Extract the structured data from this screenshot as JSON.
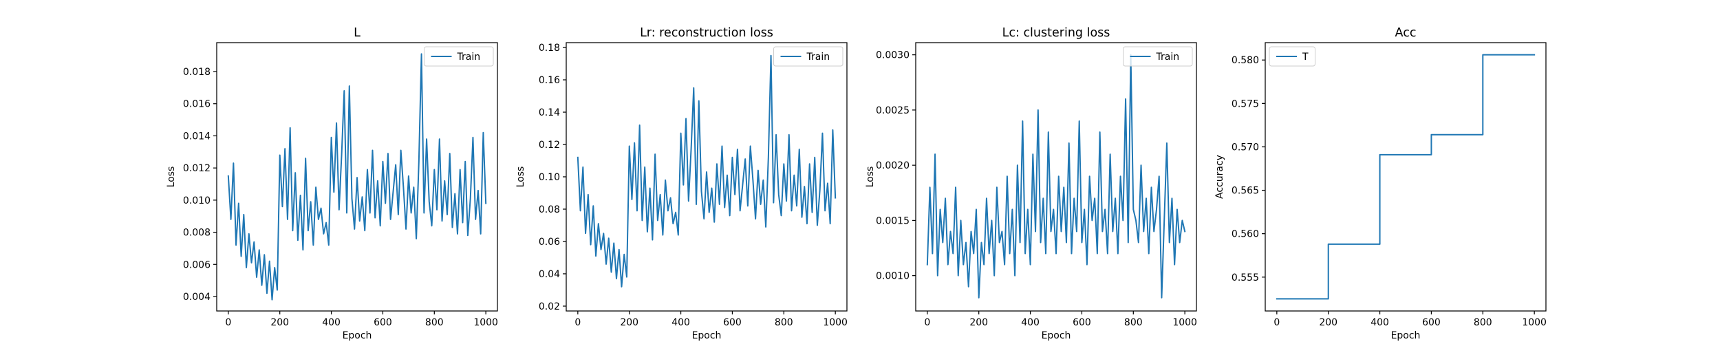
{
  "figure": {
    "line_color": "#1f77b4",
    "background": "#ffffff"
  },
  "chart_data": [
    {
      "type": "line",
      "title": "L",
      "xlabel": "Epoch",
      "ylabel": "Loss",
      "xlim": [
        -45,
        1045
      ],
      "ylim": [
        0.0031,
        0.0198
      ],
      "xticks": [
        0,
        200,
        400,
        600,
        800,
        1000
      ],
      "yticks": [
        0.004,
        0.006,
        0.008,
        0.01,
        0.012,
        0.014,
        0.016,
        0.018
      ],
      "ytick_labels": [
        "0.004",
        "0.006",
        "0.008",
        "0.010",
        "0.012",
        "0.014",
        "0.016",
        "0.018"
      ],
      "legend": {
        "loc": "upper right",
        "entries": [
          "Train"
        ]
      },
      "series": [
        {
          "name": "Train",
          "step": false,
          "x": [
            0,
            10,
            20,
            30,
            40,
            50,
            60,
            70,
            80,
            90,
            100,
            110,
            120,
            130,
            140,
            150,
            160,
            170,
            180,
            190,
            200,
            210,
            220,
            230,
            240,
            250,
            260,
            270,
            280,
            290,
            300,
            310,
            320,
            330,
            340,
            350,
            360,
            370,
            380,
            390,
            400,
            410,
            420,
            430,
            440,
            450,
            460,
            470,
            480,
            490,
            500,
            510,
            520,
            530,
            540,
            550,
            560,
            570,
            580,
            590,
            600,
            610,
            620,
            630,
            640,
            650,
            660,
            670,
            680,
            690,
            700,
            710,
            720,
            730,
            740,
            750,
            760,
            770,
            780,
            790,
            800,
            810,
            820,
            830,
            840,
            850,
            860,
            870,
            880,
            890,
            900,
            910,
            920,
            930,
            940,
            950,
            960,
            970,
            980,
            990,
            1000
          ],
          "values": [
            0.0115,
            0.0088,
            0.0123,
            0.0072,
            0.0098,
            0.0065,
            0.0091,
            0.0058,
            0.0079,
            0.0061,
            0.0074,
            0.0052,
            0.0069,
            0.0047,
            0.0066,
            0.0042,
            0.0062,
            0.0038,
            0.0058,
            0.0044,
            0.0128,
            0.0096,
            0.0132,
            0.0088,
            0.0145,
            0.0081,
            0.0117,
            0.0075,
            0.0103,
            0.0069,
            0.0126,
            0.0081,
            0.0099,
            0.0072,
            0.0108,
            0.0088,
            0.0095,
            0.0079,
            0.0086,
            0.0072,
            0.0139,
            0.0105,
            0.0148,
            0.0094,
            0.0128,
            0.0168,
            0.0092,
            0.0171,
            0.0101,
            0.0082,
            0.0114,
            0.0087,
            0.0102,
            0.0081,
            0.0119,
            0.0092,
            0.0131,
            0.0089,
            0.0112,
            0.0084,
            0.0124,
            0.0098,
            0.0129,
            0.0088,
            0.0105,
            0.0122,
            0.0091,
            0.0131,
            0.0108,
            0.0082,
            0.0115,
            0.0092,
            0.0108,
            0.0076,
            0.0124,
            0.0191,
            0.0092,
            0.0138,
            0.0099,
            0.0084,
            0.0119,
            0.0094,
            0.0138,
            0.0087,
            0.0112,
            0.0091,
            0.0129,
            0.0083,
            0.0104,
            0.0079,
            0.0119,
            0.0086,
            0.0124,
            0.0078,
            0.0101,
            0.0139,
            0.0088,
            0.0106,
            0.0079,
            0.0142,
            0.0098
          ]
        }
      ]
    },
    {
      "type": "line",
      "title": "Lr: reconstruction loss",
      "xlabel": "Epoch",
      "ylabel": "Loss",
      "xlim": [
        -45,
        1045
      ],
      "ylim": [
        0.017,
        0.183
      ],
      "xticks": [
        0,
        200,
        400,
        600,
        800,
        1000
      ],
      "yticks": [
        0.02,
        0.04,
        0.06,
        0.08,
        0.1,
        0.12,
        0.14,
        0.16,
        0.18
      ],
      "ytick_labels": [
        "0.02",
        "0.04",
        "0.06",
        "0.08",
        "0.10",
        "0.12",
        "0.14",
        "0.16",
        "0.18"
      ],
      "legend": {
        "loc": "upper right",
        "entries": [
          "Train"
        ]
      },
      "series": [
        {
          "name": "Train",
          "step": false,
          "x": [
            0,
            10,
            20,
            30,
            40,
            50,
            60,
            70,
            80,
            90,
            100,
            110,
            120,
            130,
            140,
            150,
            160,
            170,
            180,
            190,
            200,
            210,
            220,
            230,
            240,
            250,
            260,
            270,
            280,
            290,
            300,
            310,
            320,
            330,
            340,
            350,
            360,
            370,
            380,
            390,
            400,
            410,
            420,
            430,
            440,
            450,
            460,
            470,
            480,
            490,
            500,
            510,
            520,
            530,
            540,
            550,
            560,
            570,
            580,
            590,
            600,
            610,
            620,
            630,
            640,
            650,
            660,
            670,
            680,
            690,
            700,
            710,
            720,
            730,
            740,
            750,
            760,
            770,
            780,
            790,
            800,
            810,
            820,
            830,
            840,
            850,
            860,
            870,
            880,
            890,
            900,
            910,
            920,
            930,
            940,
            950,
            960,
            970,
            980,
            990,
            1000
          ],
          "values": [
            0.112,
            0.079,
            0.106,
            0.065,
            0.089,
            0.058,
            0.082,
            0.051,
            0.071,
            0.055,
            0.065,
            0.046,
            0.062,
            0.041,
            0.059,
            0.037,
            0.055,
            0.032,
            0.052,
            0.038,
            0.119,
            0.086,
            0.121,
            0.079,
            0.132,
            0.073,
            0.106,
            0.066,
            0.093,
            0.061,
            0.114,
            0.073,
            0.089,
            0.064,
            0.098,
            0.079,
            0.087,
            0.071,
            0.078,
            0.064,
            0.127,
            0.095,
            0.136,
            0.085,
            0.117,
            0.155,
            0.083,
            0.147,
            0.091,
            0.074,
            0.103,
            0.078,
            0.093,
            0.072,
            0.108,
            0.083,
            0.119,
            0.081,
            0.101,
            0.076,
            0.112,
            0.089,
            0.117,
            0.079,
            0.095,
            0.111,
            0.082,
            0.119,
            0.098,
            0.074,
            0.104,
            0.083,
            0.098,
            0.069,
            0.112,
            0.175,
            0.084,
            0.126,
            0.089,
            0.076,
            0.108,
            0.085,
            0.126,
            0.079,
            0.101,
            0.082,
            0.117,
            0.075,
            0.094,
            0.071,
            0.108,
            0.078,
            0.112,
            0.07,
            0.092,
            0.127,
            0.079,
            0.096,
            0.071,
            0.129,
            0.087
          ]
        }
      ]
    },
    {
      "type": "line",
      "title": "Lc: clustering loss",
      "xlabel": "Epoch",
      "ylabel": "Loss",
      "xlim": [
        -45,
        1045
      ],
      "ylim": [
        0.00068,
        0.00311
      ],
      "xticks": [
        0,
        200,
        400,
        600,
        800,
        1000
      ],
      "yticks": [
        0.001,
        0.0015,
        0.002,
        0.0025,
        0.003
      ],
      "ytick_labels": [
        "0.0010",
        "0.0015",
        "0.0020",
        "0.0025",
        "0.0030"
      ],
      "legend": {
        "loc": "upper right",
        "entries": [
          "Train"
        ]
      },
      "series": [
        {
          "name": "Train",
          "step": false,
          "x": [
            0,
            10,
            20,
            30,
            40,
            50,
            60,
            70,
            80,
            90,
            100,
            110,
            120,
            130,
            140,
            150,
            160,
            170,
            180,
            190,
            200,
            210,
            220,
            230,
            240,
            250,
            260,
            270,
            280,
            290,
            300,
            310,
            320,
            330,
            340,
            350,
            360,
            370,
            380,
            390,
            400,
            410,
            420,
            430,
            440,
            450,
            460,
            470,
            480,
            490,
            500,
            510,
            520,
            530,
            540,
            550,
            560,
            570,
            580,
            590,
            600,
            610,
            620,
            630,
            640,
            650,
            660,
            670,
            680,
            690,
            700,
            710,
            720,
            730,
            740,
            750,
            760,
            770,
            780,
            790,
            800,
            810,
            820,
            830,
            840,
            850,
            860,
            870,
            880,
            890,
            900,
            910,
            920,
            930,
            940,
            950,
            960,
            970,
            980,
            990,
            1000
          ],
          "values": [
            0.0011,
            0.0018,
            0.0012,
            0.0021,
            0.001,
            0.0016,
            0.0013,
            0.0017,
            0.0011,
            0.0014,
            0.0012,
            0.0018,
            0.001,
            0.0015,
            0.0011,
            0.0013,
            0.0009,
            0.0014,
            0.0012,
            0.0016,
            0.0008,
            0.0013,
            0.0011,
            0.0017,
            0.0012,
            0.0015,
            0.001,
            0.0018,
            0.0013,
            0.0014,
            0.0011,
            0.0019,
            0.0012,
            0.0016,
            0.001,
            0.002,
            0.0013,
            0.0024,
            0.0012,
            0.0016,
            0.0011,
            0.0021,
            0.0014,
            0.0025,
            0.0013,
            0.0017,
            0.0012,
            0.0023,
            0.0014,
            0.0016,
            0.0012,
            0.0019,
            0.0014,
            0.0018,
            0.0013,
            0.0022,
            0.0012,
            0.0017,
            0.0014,
            0.0024,
            0.0013,
            0.0016,
            0.0011,
            0.0019,
            0.0015,
            0.0017,
            0.0012,
            0.0023,
            0.0014,
            0.0016,
            0.0012,
            0.0021,
            0.0014,
            0.0017,
            0.0012,
            0.0019,
            0.0015,
            0.0026,
            0.0013,
            0.003,
            0.0016,
            0.0015,
            0.0013,
            0.002,
            0.0014,
            0.0017,
            0.0012,
            0.0018,
            0.0014,
            0.0016,
            0.0019,
            0.0008,
            0.0015,
            0.0022,
            0.0013,
            0.0017,
            0.0011,
            0.0016,
            0.0013,
            0.0015,
            0.0014
          ]
        }
      ]
    },
    {
      "type": "line",
      "title": "Acc",
      "xlabel": "Epoch",
      "ylabel": "Accuracy",
      "xlim": [
        -45,
        1045
      ],
      "ylim": [
        0.5511,
        0.582
      ],
      "xticks": [
        0,
        200,
        400,
        600,
        800,
        1000
      ],
      "yticks": [
        0.555,
        0.56,
        0.565,
        0.57,
        0.575,
        0.58
      ],
      "ytick_labels": [
        "0.555",
        "0.560",
        "0.565",
        "0.570",
        "0.575",
        "0.580"
      ],
      "legend": {
        "loc": "upper left",
        "entries": [
          "T"
        ]
      },
      "series": [
        {
          "name": "T",
          "step": true,
          "x": [
            0,
            200,
            400,
            600,
            800,
            1000
          ],
          "values": [
            0.5525,
            0.5588,
            0.5691,
            0.5714,
            0.5806,
            0.5806
          ]
        }
      ]
    }
  ]
}
